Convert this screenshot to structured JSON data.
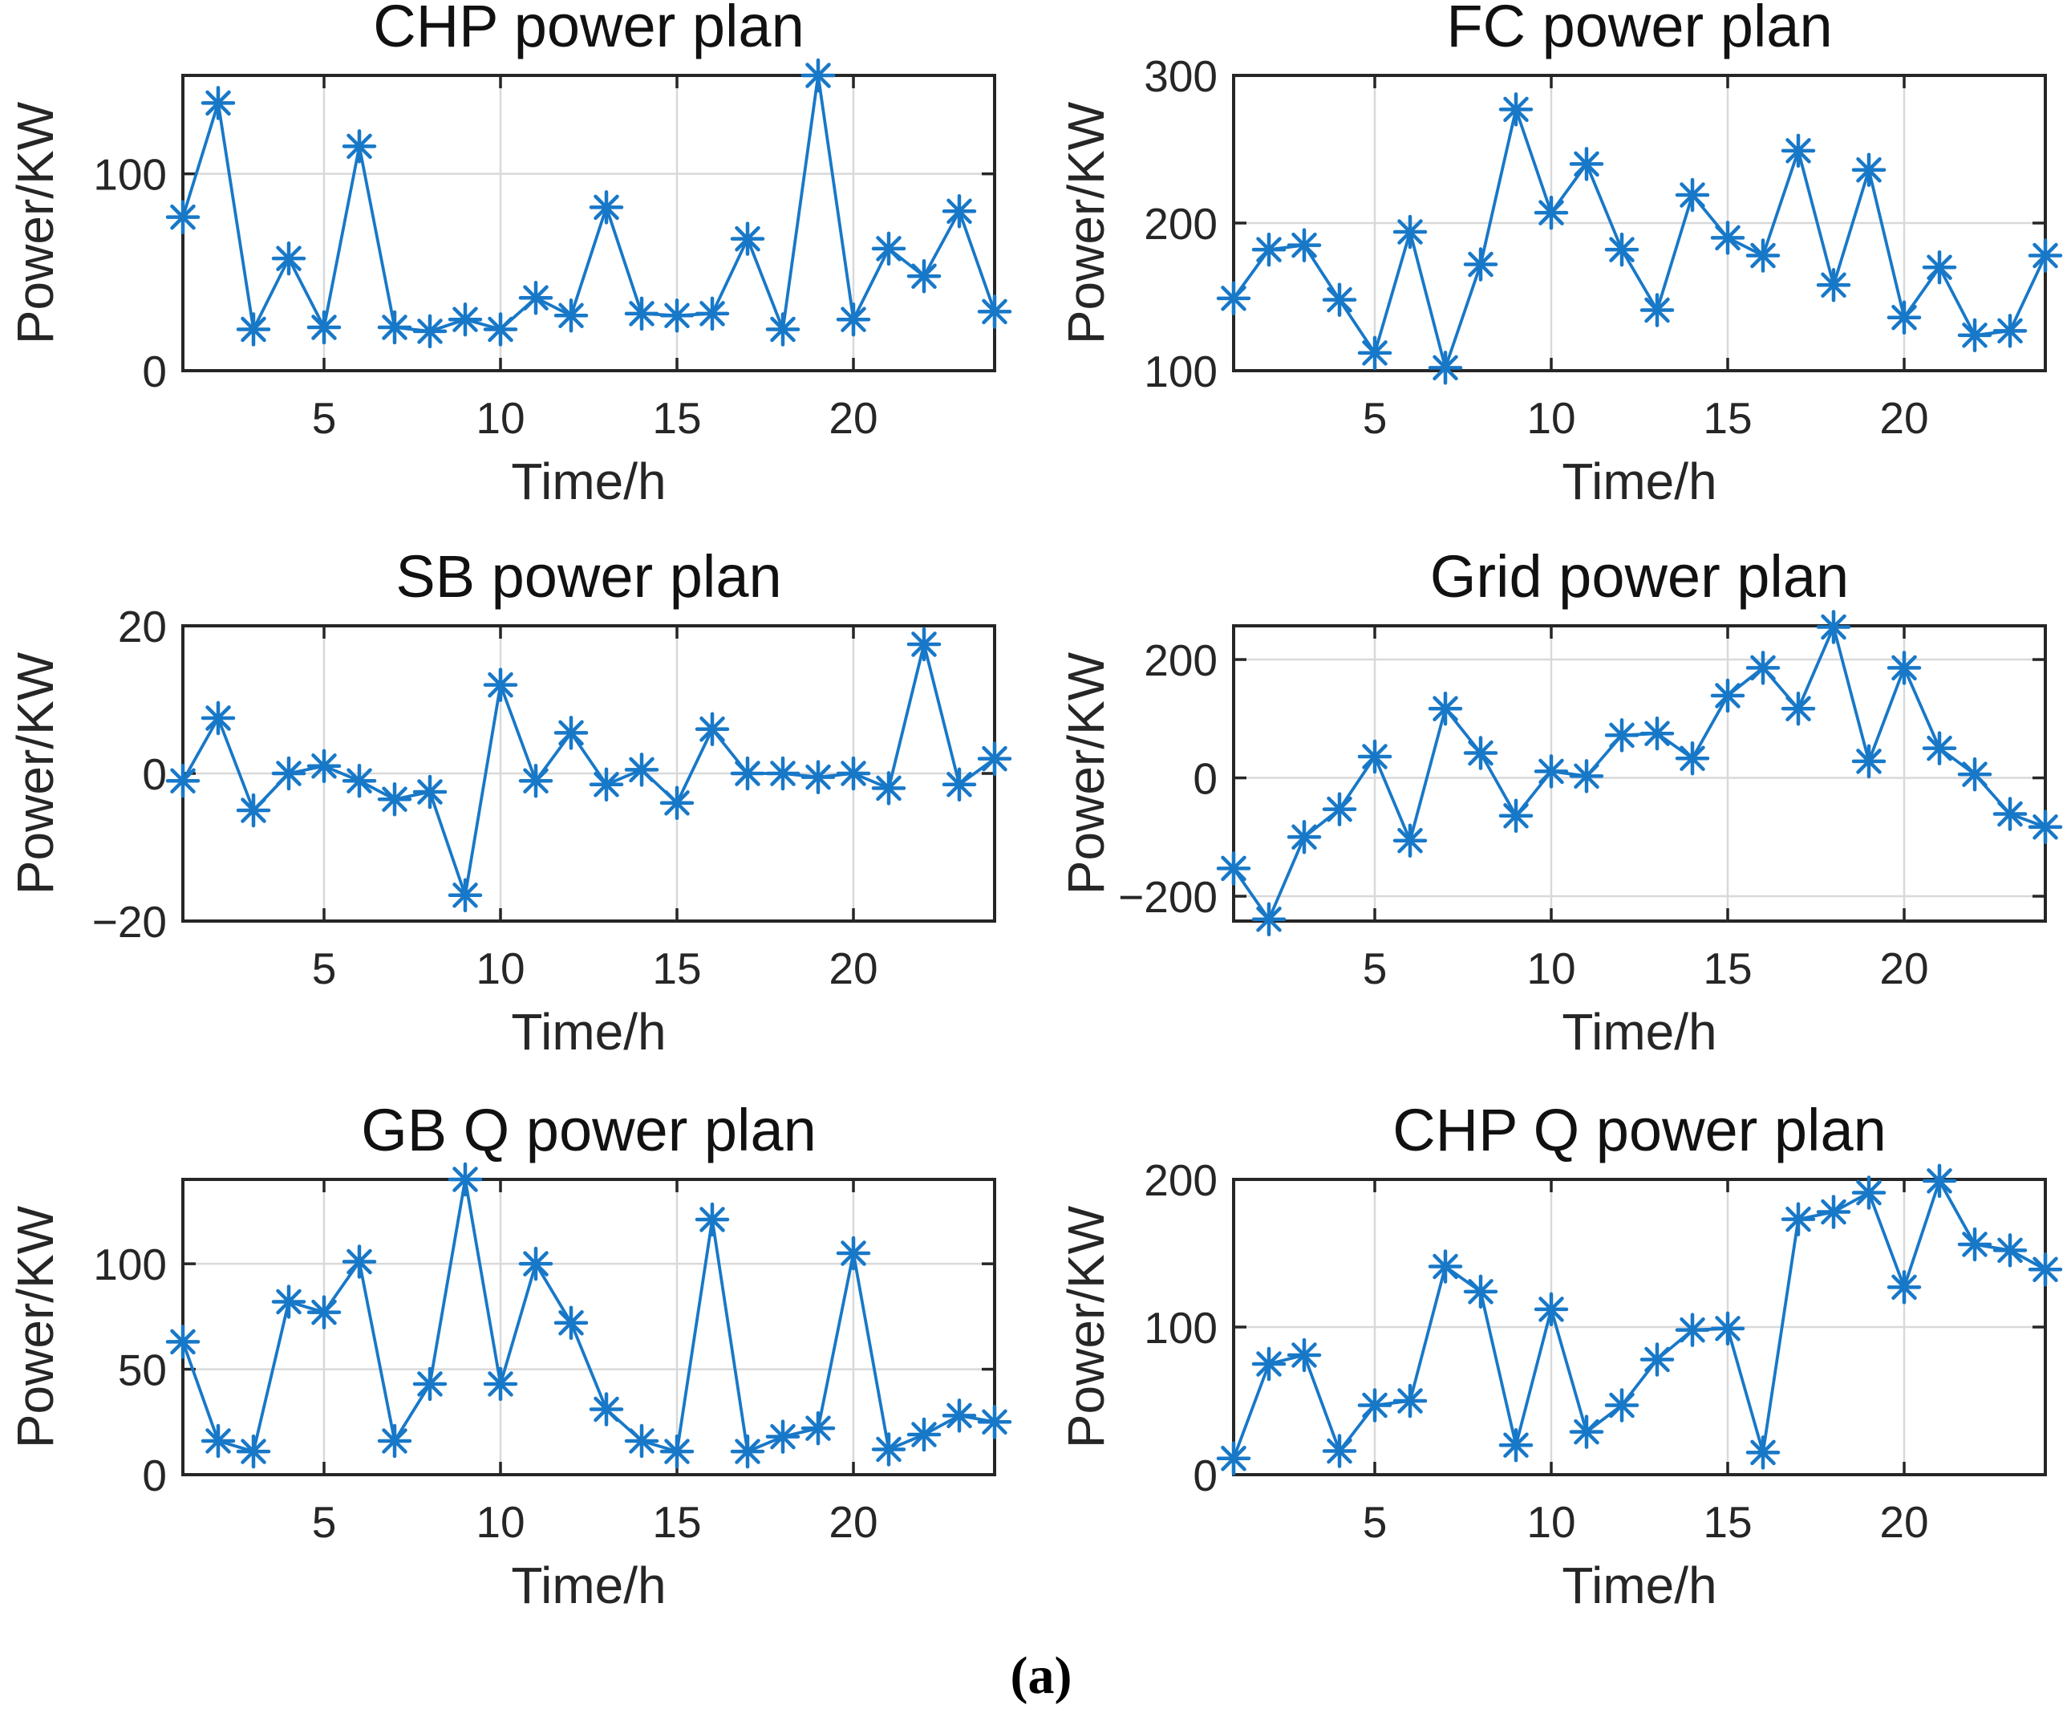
{
  "figure": {
    "caption": "(a)"
  },
  "style": {
    "line_color": "#1878c8",
    "axis_color": "#262626",
    "grid_color": "#d9d9d9",
    "text_color": "#262626",
    "background": "#ffffff"
  },
  "chart_data": [
    {
      "type": "line",
      "title": "CHP power plan",
      "xlabel": "Time/h",
      "ylabel": "Power/KW",
      "marker": "asterisk",
      "legend_position": "none",
      "x": [
        1,
        2,
        3,
        4,
        5,
        6,
        7,
        8,
        9,
        10,
        11,
        12,
        13,
        14,
        15,
        16,
        17,
        18,
        19,
        20,
        21,
        22,
        23,
        24
      ],
      "values": [
        78,
        136,
        21,
        57,
        22,
        114,
        22,
        20,
        26,
        21,
        37,
        28,
        83,
        29,
        28,
        29,
        67,
        21,
        150,
        26,
        62,
        48,
        81,
        30
      ],
      "xlim": [
        1,
        24
      ],
      "ylim": [
        0,
        150
      ],
      "xticks": [
        5,
        10,
        15,
        20
      ],
      "yticks": [
        0,
        100
      ],
      "grid_x": [
        5,
        10,
        15,
        20
      ],
      "grid_y": [
        100
      ]
    },
    {
      "type": "line",
      "title": "FC power plan",
      "xlabel": "Time/h",
      "ylabel": "Power/KW",
      "marker": "asterisk",
      "legend_position": "none",
      "x": [
        1,
        2,
        3,
        4,
        5,
        6,
        7,
        8,
        9,
        10,
        11,
        12,
        13,
        14,
        15,
        16,
        17,
        18,
        19,
        20,
        21,
        22,
        23,
        24
      ],
      "values": [
        149,
        182,
        185,
        148,
        112,
        194,
        102,
        172,
        277,
        207,
        240,
        182,
        141,
        219,
        190,
        178,
        249,
        158,
        236,
        136,
        170,
        124,
        127,
        178
      ],
      "xlim": [
        1,
        24
      ],
      "ylim": [
        100,
        300
      ],
      "xticks": [
        5,
        10,
        15,
        20
      ],
      "yticks": [
        100,
        200,
        300
      ],
      "grid_x": [
        5,
        10,
        15,
        20
      ],
      "grid_y": [
        200
      ]
    },
    {
      "type": "line",
      "title": "SB power plan",
      "xlabel": "Time/h",
      "ylabel": "Power/KW",
      "marker": "asterisk",
      "legend_position": "none",
      "x": [
        1,
        2,
        3,
        4,
        5,
        6,
        7,
        8,
        9,
        10,
        11,
        12,
        13,
        14,
        15,
        16,
        17,
        18,
        19,
        20,
        21,
        22,
        23,
        24
      ],
      "values": [
        -1,
        7.5,
        -5,
        0,
        1,
        -1,
        -3.5,
        -2.5,
        -16.5,
        12,
        -1,
        5.5,
        -1.5,
        0.5,
        -4,
        6,
        0,
        0,
        -0.5,
        0,
        -2,
        17.5,
        -1.5,
        2
      ],
      "xlim": [
        1,
        24
      ],
      "ylim": [
        -20,
        20
      ],
      "xticks": [
        5,
        10,
        15,
        20
      ],
      "yticks": [
        -20,
        0,
        20
      ],
      "grid_x": [
        5,
        10,
        15,
        20
      ],
      "grid_y": [
        0
      ]
    },
    {
      "type": "line",
      "title": "Grid power plan",
      "xlabel": "Time/h",
      "ylabel": "Power/KW",
      "marker": "asterisk",
      "legend_position": "none",
      "x": [
        1,
        2,
        3,
        4,
        5,
        6,
        7,
        8,
        9,
        10,
        11,
        12,
        13,
        14,
        15,
        16,
        17,
        18,
        19,
        20,
        21,
        22,
        23,
        24
      ],
      "values": [
        -153,
        -239,
        -100,
        -53,
        36,
        -106,
        117,
        42,
        -64,
        11,
        3,
        72,
        75,
        33,
        139,
        186,
        117,
        255,
        28,
        186,
        50,
        6,
        -61,
        -83
      ],
      "xlim": [
        1,
        24
      ],
      "ylim": [
        -242,
        257
      ],
      "xticks": [
        5,
        10,
        15,
        20
      ],
      "yticks": [
        -200,
        0,
        200
      ],
      "grid_x": [
        5,
        10,
        15,
        20
      ],
      "grid_y": [
        -200,
        0,
        200
      ]
    },
    {
      "type": "line",
      "title": "GB Q power plan",
      "xlabel": "Time/h",
      "ylabel": "Power/KW",
      "marker": "asterisk",
      "legend_position": "none",
      "x": [
        1,
        2,
        3,
        4,
        5,
        6,
        7,
        8,
        9,
        10,
        11,
        12,
        13,
        14,
        15,
        16,
        17,
        18,
        19,
        20,
        21,
        22,
        23,
        24
      ],
      "values": [
        63,
        16,
        11,
        82,
        77,
        101,
        16,
        43,
        140,
        43,
        100,
        72,
        31,
        16,
        11,
        121,
        11,
        18,
        22,
        105,
        12,
        19,
        28,
        25
      ],
      "xlim": [
        1,
        24
      ],
      "ylim": [
        0,
        140
      ],
      "xticks": [
        5,
        10,
        15,
        20
      ],
      "yticks": [
        0,
        50,
        100
      ],
      "grid_x": [
        5,
        10,
        15,
        20
      ],
      "grid_y": [
        50,
        100
      ]
    },
    {
      "type": "line",
      "title": "CHP Q power plan",
      "xlabel": "Time/h",
      "ylabel": "Power/KW",
      "marker": "asterisk",
      "legend_position": "none",
      "x": [
        1,
        2,
        3,
        4,
        5,
        6,
        7,
        8,
        9,
        10,
        11,
        12,
        13,
        14,
        15,
        16,
        17,
        18,
        19,
        20,
        21,
        22,
        23,
        24
      ],
      "values": [
        11,
        75,
        81,
        16,
        47,
        50,
        141,
        124,
        20,
        112,
        29,
        47,
        78,
        98,
        99,
        15,
        173,
        178,
        191,
        127,
        199,
        156,
        152,
        139
      ],
      "xlim": [
        1,
        24
      ],
      "ylim": [
        0,
        200
      ],
      "xticks": [
        5,
        10,
        15,
        20
      ],
      "yticks": [
        0,
        100,
        200
      ],
      "grid_x": [
        5,
        10,
        15,
        20
      ],
      "grid_y": [
        100
      ]
    }
  ]
}
